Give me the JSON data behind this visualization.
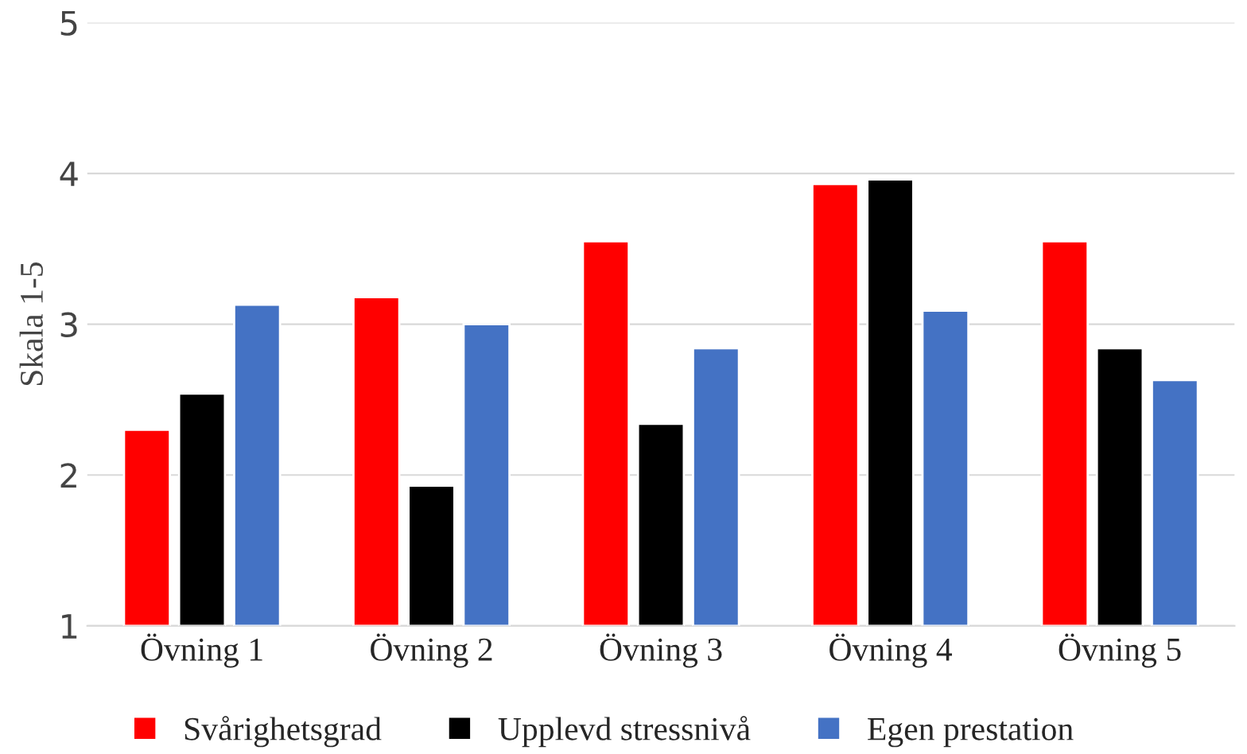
{
  "chart_data": {
    "type": "bar",
    "ylabel": "Skala 1-5",
    "categories": [
      "Övning 1",
      "Övning 2",
      "Övning 3",
      "Övning 4",
      "Övning 5"
    ],
    "series": [
      {
        "name": "Svårighetsgrad",
        "color": "#ff0000",
        "values": [
          2.3,
          3.18,
          3.55,
          3.93,
          3.55
        ]
      },
      {
        "name": "Upplevd stressnivå",
        "color": "#000000",
        "values": [
          2.54,
          1.93,
          2.34,
          3.96,
          2.84
        ]
      },
      {
        "name": "Egen prestation",
        "color": "#4472c4",
        "values": [
          3.13,
          3.0,
          2.84,
          3.09,
          2.63
        ]
      }
    ],
    "ylim": [
      1,
      5
    ],
    "yticks": [
      1,
      2,
      3,
      4,
      5
    ],
    "grid": "y",
    "legend": "bottom"
  }
}
